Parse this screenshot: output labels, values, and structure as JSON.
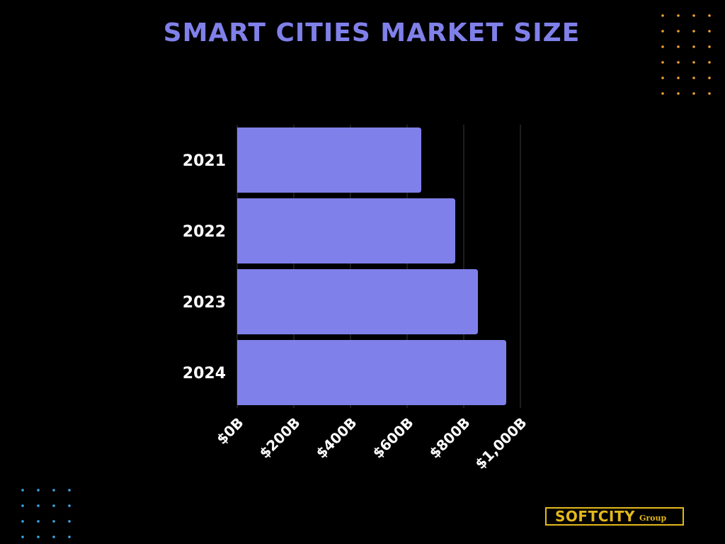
{
  "chart_data": {
    "type": "bar",
    "orientation": "horizontal",
    "title": "SMART CITIES MARKET SIZE",
    "categories": [
      "2021",
      "2022",
      "2023",
      "2024"
    ],
    "values": [
      650,
      770,
      850,
      950
    ],
    "xlim": [
      0,
      1000
    ],
    "x_ticks": [
      0,
      200,
      400,
      600,
      800,
      1000
    ],
    "x_tick_labels": [
      "$0B",
      "$200B",
      "$400B",
      "$600B",
      "$800B",
      "$1,000B"
    ],
    "xlabel": "",
    "ylabel": "",
    "grid": true,
    "colors": {
      "bar": "#8080ea",
      "title": "#8080ea",
      "background": "#000000",
      "grid": "#3a3a3a",
      "text": "#ffffff"
    }
  },
  "logo": {
    "text": "SOFTCITY",
    "sub": "Group",
    "color": "#e3b81b"
  },
  "decorations": {
    "top_right_dots_color": "#f0a030",
    "bottom_left_dots_color": "#3aa8e6"
  }
}
